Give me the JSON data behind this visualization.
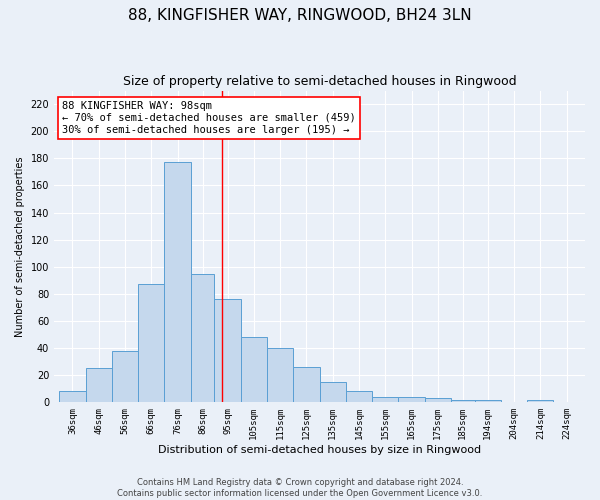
{
  "title": "88, KINGFISHER WAY, RINGWOOD, BH24 3LN",
  "subtitle": "Size of property relative to semi-detached houses in Ringwood",
  "xlabel": "Distribution of semi-detached houses by size in Ringwood",
  "ylabel": "Number of semi-detached properties",
  "footer_line1": "Contains HM Land Registry data © Crown copyright and database right 2024.",
  "footer_line2": "Contains public sector information licensed under the Open Government Licence v3.0.",
  "annotation_line1": "88 KINGFISHER WAY: 98sqm",
  "annotation_line2": "← 70% of semi-detached houses are smaller (459)",
  "annotation_line3": "30% of semi-detached houses are larger (195) →",
  "bar_left_edges": [
    36,
    46,
    56,
    66,
    76,
    86,
    95,
    105,
    115,
    125,
    135,
    145,
    155,
    165,
    175,
    185,
    194,
    204,
    214,
    224
  ],
  "bar_widths": [
    10,
    10,
    10,
    10,
    10,
    9,
    10,
    10,
    10,
    10,
    10,
    10,
    10,
    10,
    10,
    9,
    10,
    10,
    10,
    10
  ],
  "bar_heights": [
    8,
    25,
    38,
    87,
    177,
    95,
    76,
    48,
    40,
    26,
    15,
    8,
    4,
    4,
    3,
    2,
    2,
    0,
    2,
    0
  ],
  "bar_color": "#c5d8ed",
  "bar_edge_color": "#5a9fd4",
  "vline_x": 98,
  "vline_color": "red",
  "annotation_box_color": "white",
  "annotation_box_edge_color": "red",
  "ylim": [
    0,
    230
  ],
  "yticks": [
    0,
    20,
    40,
    60,
    80,
    100,
    120,
    140,
    160,
    180,
    200,
    220
  ],
  "bg_color": "#eaf0f8",
  "grid_color": "white",
  "title_fontsize": 11,
  "subtitle_fontsize": 9,
  "annotation_fontsize": 7.5,
  "ylabel_fontsize": 7,
  "xlabel_fontsize": 8,
  "footer_fontsize": 6,
  "xtick_fontsize": 6.5,
  "ytick_fontsize": 7
}
